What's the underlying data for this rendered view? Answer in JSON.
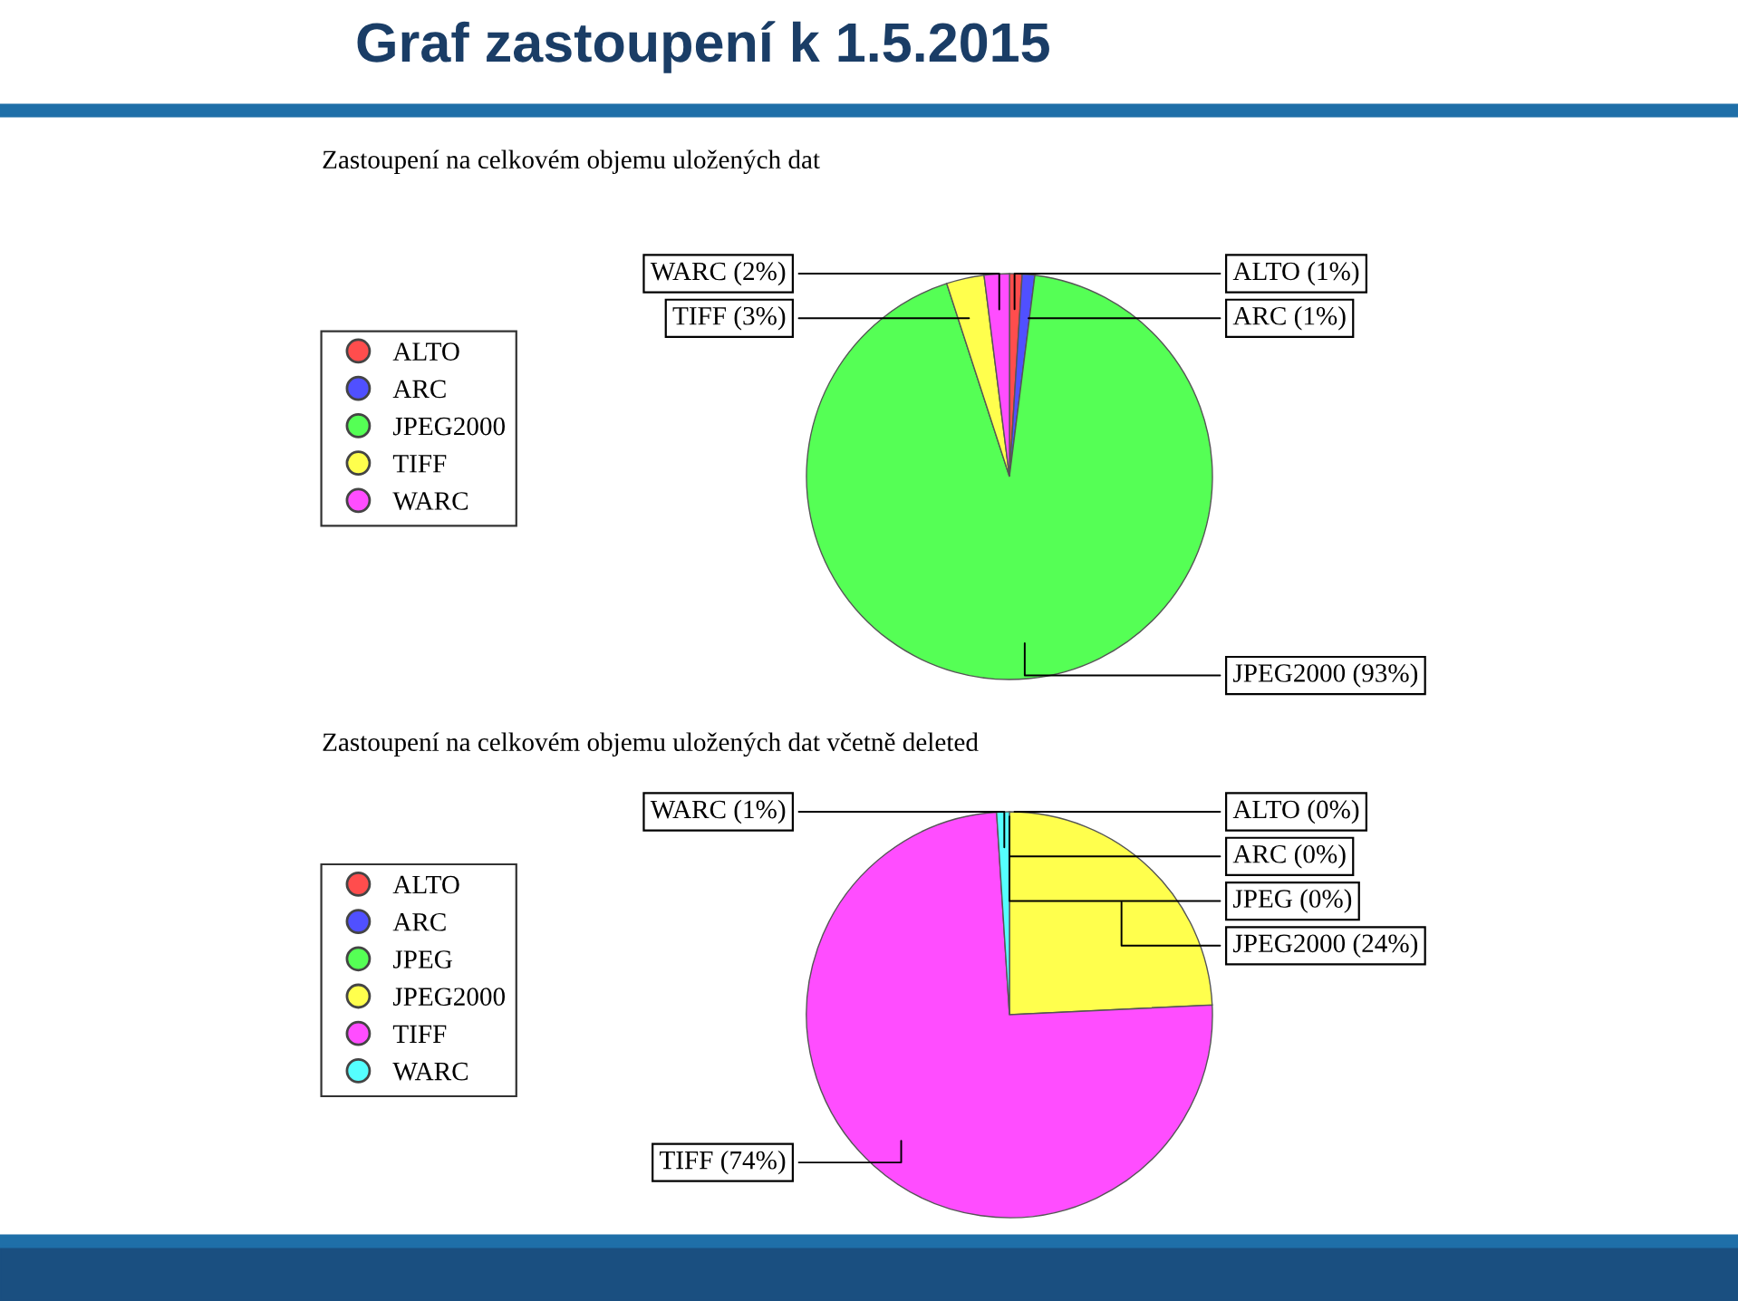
{
  "chart_data": [
    {
      "type": "pie",
      "title": "Zastoupení na celkovém objemu uložených dat",
      "annotations": [
        "Graf zastoupení k 1.5.2015"
      ],
      "legend": "left",
      "categories": [
        "ALTO",
        "ARC",
        "JPEG2000",
        "TIFF",
        "WARC"
      ],
      "values": [
        1,
        1,
        93,
        3,
        2
      ],
      "value_labels": [
        "ALTO (1%)",
        "ARC (1%)",
        "JPEG2000 (93%)",
        "TIFF (3%)",
        "WARC (2%)"
      ],
      "colors": [
        "#ff4d4d",
        "#5050ff",
        "#55ff55",
        "#ffff4d",
        "#ff4dff"
      ]
    },
    {
      "type": "pie",
      "title": "Zastoupení na celkovém objemu uložených dat včetně deleted",
      "legend": "left",
      "categories": [
        "ALTO",
        "ARC",
        "JPEG",
        "JPEG2000",
        "TIFF",
        "WARC"
      ],
      "values": [
        0,
        0,
        0,
        24,
        74,
        1
      ],
      "value_labels": [
        "ALTO (0%)",
        "ARC (0%)",
        "JPEG (0%)",
        "JPEG2000 (24%)",
        "TIFF (74%)",
        "WARC (1%)"
      ],
      "colors": [
        "#ff4d4d",
        "#5050ff",
        "#55ff55",
        "#ffff4d",
        "#ff4dff",
        "#55ffff"
      ]
    }
  ]
}
